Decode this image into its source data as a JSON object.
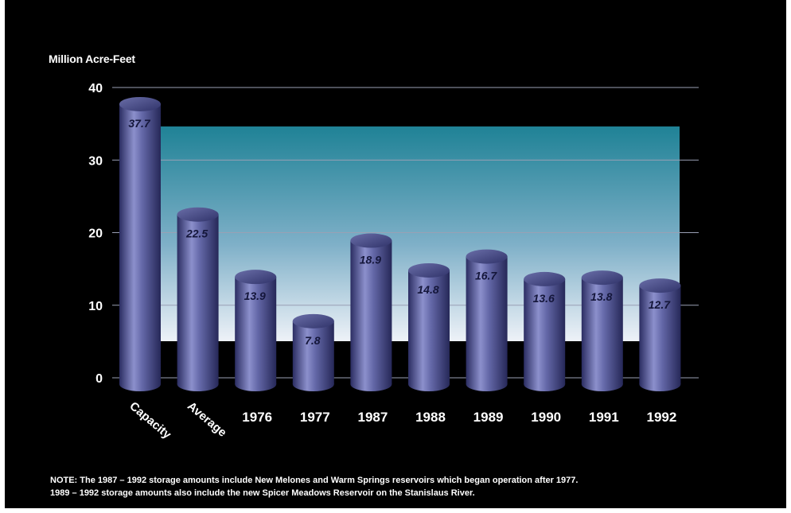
{
  "chart_data": {
    "type": "bar",
    "ylabel": "Million Acre-Feet",
    "ylim": [
      0,
      40
    ],
    "yticks": [
      "0",
      "10",
      "20",
      "30",
      "40"
    ],
    "categories": [
      "Capacity",
      "Average",
      "1976",
      "1977",
      "1987",
      "1988",
      "1989",
      "1990",
      "1991",
      "1992"
    ],
    "values": [
      37.7,
      22.5,
      13.9,
      7.8,
      18.9,
      14.8,
      16.7,
      13.6,
      13.8,
      12.7
    ],
    "value_labels": [
      "37.7",
      "22.5",
      "13.9",
      "7.8",
      "18.9",
      "14.8",
      "16.7",
      "13.6",
      "13.8",
      "12.7"
    ],
    "grid": true,
    "colors": {
      "background": "#000000",
      "bar": "#5a5e9e",
      "panel_top": "#2a8a9a",
      "panel_bottom": "#e6ecf6"
    }
  },
  "note": {
    "line1": "NOTE: The 1987 – 1992 storage amounts include New Melones and Warm Springs reservoirs which began operation after 1977.",
    "line2": "1989 – 1992 storage amounts also include the new Spicer Meadows Reservoir on the Stanislaus River."
  }
}
